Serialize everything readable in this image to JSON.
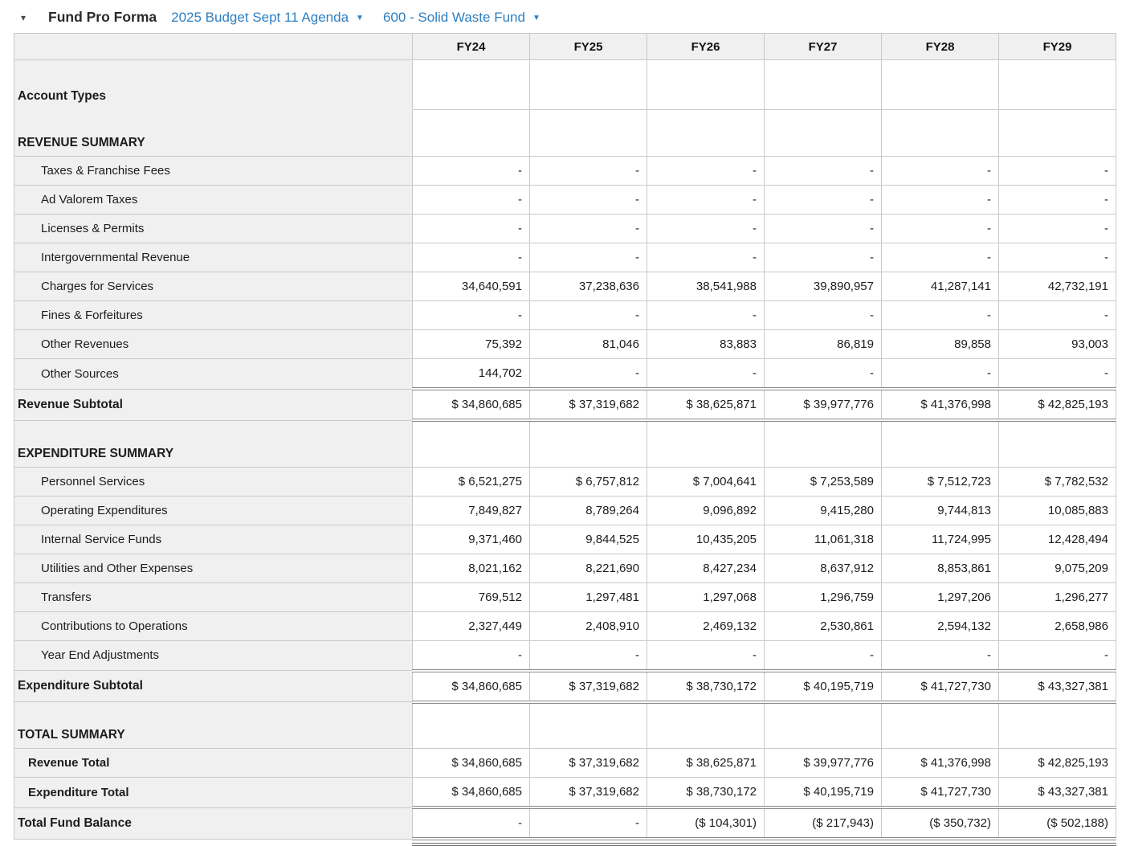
{
  "toolbar": {
    "collapse_caret": "▾",
    "title": "Fund Pro Forma",
    "budget_dropdown": {
      "label": "2025 Budget Sept 11 Agenda",
      "caret": "▼"
    },
    "fund_dropdown": {
      "label": "600 - Solid Waste Fund",
      "caret": "▼"
    }
  },
  "colors": {
    "link_blue": "#2e7fc2",
    "header_bg": "#f0f0f0",
    "label_column_bg": "#f0f0f0",
    "grid_border": "#c9c9c9",
    "outer_border": "#a6a6a6",
    "subtotal_rule": "#8a8a8a",
    "text": "#1c1c1c"
  },
  "table": {
    "corner_label": "",
    "columns": [
      "FY24",
      "FY25",
      "FY26",
      "FY27",
      "FY28",
      "FY29"
    ],
    "rows": [
      {
        "label": "Account Types",
        "type": "section",
        "flags": [
          "merge-down",
          "tall-extra"
        ],
        "values": [
          "",
          "",
          "",
          "",
          "",
          ""
        ]
      },
      {
        "label": "REVENUE SUMMARY",
        "type": "section",
        "flags": [
          "merge-up"
        ],
        "values": [
          "",
          "",
          "",
          "",
          "",
          ""
        ]
      },
      {
        "label": "Taxes & Franchise Fees",
        "type": "item",
        "values": [
          "-",
          "-",
          "-",
          "-",
          "-",
          "-"
        ]
      },
      {
        "label": "Ad Valorem Taxes",
        "type": "item",
        "values": [
          "-",
          "-",
          "-",
          "-",
          "-",
          "-"
        ]
      },
      {
        "label": "Licenses & Permits",
        "type": "item",
        "values": [
          "-",
          "-",
          "-",
          "-",
          "-",
          "-"
        ]
      },
      {
        "label": "Intergovernmental Revenue",
        "type": "item",
        "values": [
          "-",
          "-",
          "-",
          "-",
          "-",
          "-"
        ]
      },
      {
        "label": "Charges for Services",
        "type": "item",
        "values": [
          "34,640,591",
          "37,238,636",
          "38,541,988",
          "39,890,957",
          "41,287,141",
          "42,732,191"
        ]
      },
      {
        "label": "Fines & Forfeitures",
        "type": "item",
        "values": [
          "-",
          "-",
          "-",
          "-",
          "-",
          "-"
        ]
      },
      {
        "label": "Other Revenues",
        "type": "item",
        "values": [
          "75,392",
          "81,046",
          "83,883",
          "86,819",
          "89,858",
          "93,003"
        ]
      },
      {
        "label": "Other Sources",
        "type": "item",
        "values": [
          "144,702",
          "-",
          "-",
          "-",
          "-",
          "-"
        ]
      },
      {
        "label": "Revenue Subtotal",
        "type": "subtotal",
        "values": [
          "$ 34,860,685",
          "$ 37,319,682",
          "$ 38,625,871",
          "$ 39,977,776",
          "$ 41,376,998",
          "$ 42,825,193"
        ]
      },
      {
        "label": "EXPENDITURE SUMMARY",
        "type": "section",
        "values": [
          "",
          "",
          "",
          "",
          "",
          ""
        ]
      },
      {
        "label": "Personnel Services",
        "type": "item",
        "values": [
          "$ 6,521,275",
          "$ 6,757,812",
          "$ 7,004,641",
          "$ 7,253,589",
          "$ 7,512,723",
          "$ 7,782,532"
        ]
      },
      {
        "label": "Operating Expenditures",
        "type": "item",
        "values": [
          "7,849,827",
          "8,789,264",
          "9,096,892",
          "9,415,280",
          "9,744,813",
          "10,085,883"
        ]
      },
      {
        "label": "Internal Service Funds",
        "type": "item",
        "values": [
          "9,371,460",
          "9,844,525",
          "10,435,205",
          "11,061,318",
          "11,724,995",
          "12,428,494"
        ]
      },
      {
        "label": "Utilities and Other Expenses",
        "type": "item",
        "values": [
          "8,021,162",
          "8,221,690",
          "8,427,234",
          "8,637,912",
          "8,853,861",
          "9,075,209"
        ]
      },
      {
        "label": "Transfers",
        "type": "item",
        "values": [
          "769,512",
          "1,297,481",
          "1,297,068",
          "1,296,759",
          "1,297,206",
          "1,296,277"
        ]
      },
      {
        "label": "Contributions to Operations",
        "type": "item",
        "values": [
          "2,327,449",
          "2,408,910",
          "2,469,132",
          "2,530,861",
          "2,594,132",
          "2,658,986"
        ]
      },
      {
        "label": "Year End Adjustments",
        "type": "item",
        "values": [
          "-",
          "-",
          "-",
          "-",
          "-",
          "-"
        ]
      },
      {
        "label": "Expenditure Subtotal",
        "type": "subtotal",
        "values": [
          "$ 34,860,685",
          "$ 37,319,682",
          "$ 38,730,172",
          "$ 40,195,719",
          "$ 41,727,730",
          "$ 43,327,381"
        ]
      },
      {
        "label": "TOTAL SUMMARY",
        "type": "section",
        "values": [
          "",
          "",
          "",
          "",
          "",
          ""
        ]
      },
      {
        "label": "Revenue Total",
        "type": "total_item",
        "values": [
          "$ 34,860,685",
          "$ 37,319,682",
          "$ 38,625,871",
          "$ 39,977,776",
          "$ 41,376,998",
          "$ 42,825,193"
        ]
      },
      {
        "label": "Expenditure Total",
        "type": "total_item",
        "values": [
          "$ 34,860,685",
          "$ 37,319,682",
          "$ 38,730,172",
          "$ 40,195,719",
          "$ 41,727,730",
          "$ 43,327,381"
        ]
      },
      {
        "label": "Total Fund Balance",
        "type": "grand",
        "values": [
          "-",
          "-",
          "($ 104,301)",
          "($ 217,943)",
          "($ 350,732)",
          "($ 502,188)"
        ]
      }
    ]
  }
}
